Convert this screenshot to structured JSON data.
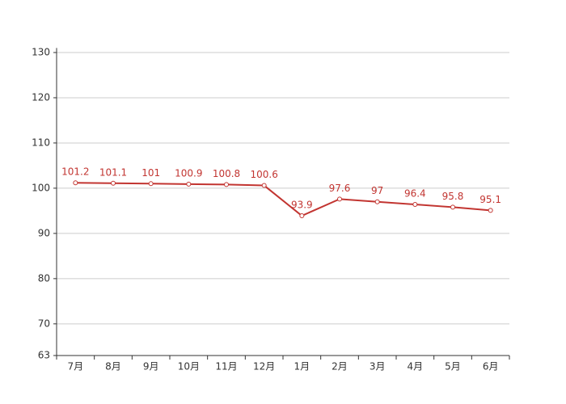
{
  "chart_data": {
    "type": "line",
    "categories": [
      "7月",
      "8月",
      "9月",
      "10月",
      "11月",
      "12月",
      "1月",
      "2月",
      "3月",
      "4月",
      "5月",
      "6月"
    ],
    "values": [
      101.2,
      101.1,
      101,
      100.9,
      100.8,
      100.6,
      93.9,
      97.6,
      97,
      96.4,
      95.8,
      95.1
    ],
    "color": "#c23531",
    "ylim": [
      63,
      131
    ],
    "yticks": [
      63,
      70,
      80,
      90,
      100,
      110,
      120,
      130
    ],
    "grid": true
  }
}
